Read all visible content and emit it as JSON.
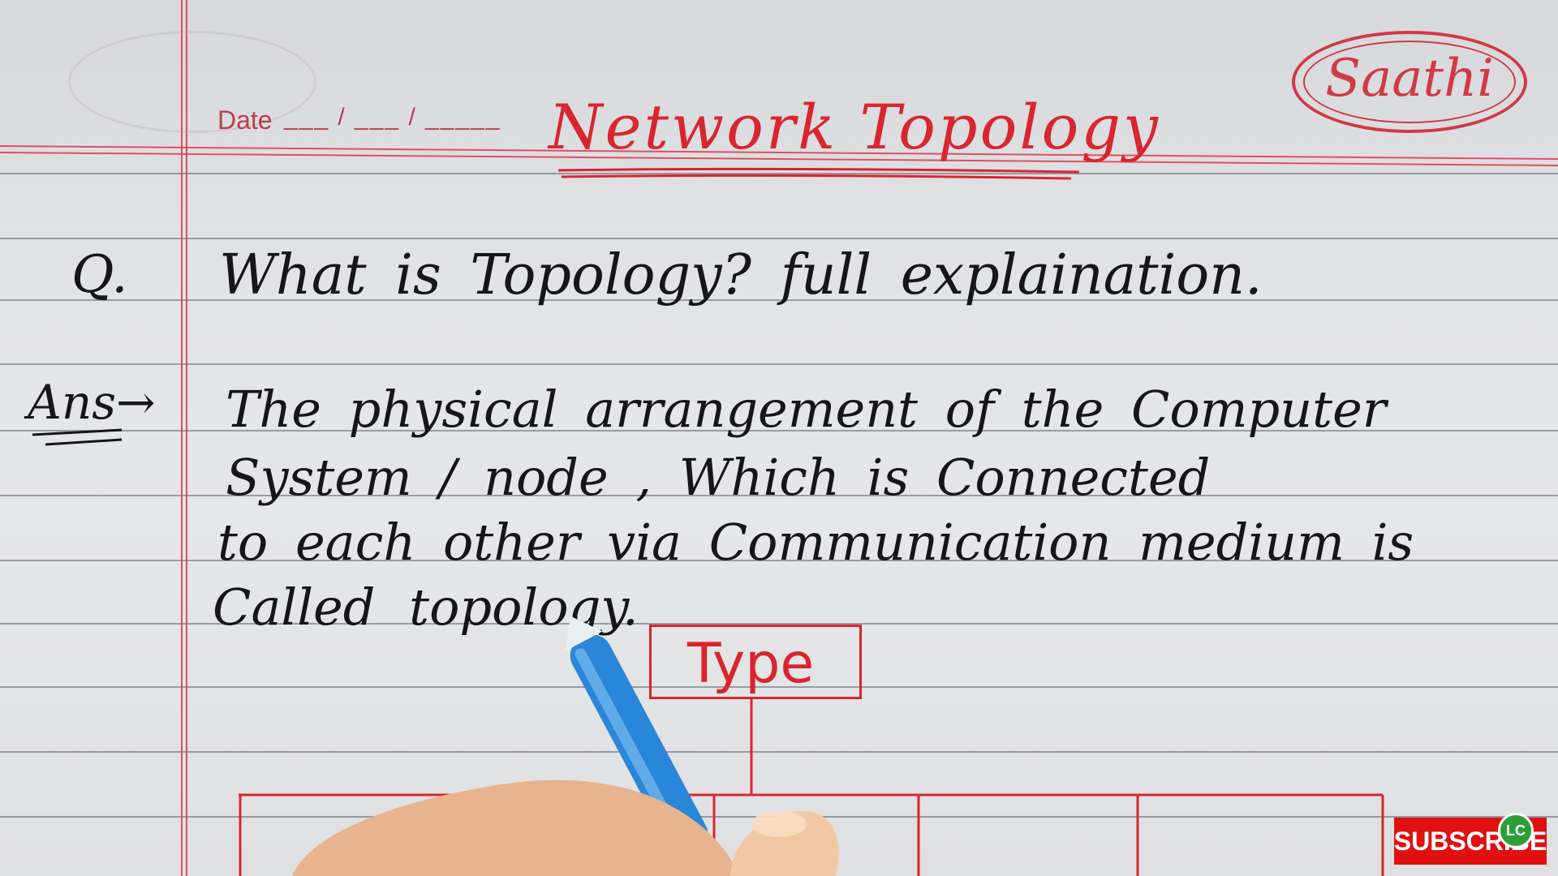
{
  "page": {
    "date_label": "Date",
    "date_slots": "___ / ___ / _____",
    "brand": "Saathi"
  },
  "notes": {
    "title": "Network Topology",
    "question_mark": "Q.",
    "question": "What is Topology? full explaination.",
    "answer_marker": "Ans→",
    "answer_lines": [
      "The physical arrangement of the Computer",
      "System / node , Which is Connected",
      "to each other via Communication medium is",
      "Called topology."
    ],
    "diagram_root": "Type"
  },
  "overlay": {
    "subscribe": "SUBSCRIBE",
    "channel_badge": "LC"
  },
  "colors": {
    "paper": "#e4e5e6",
    "ruled_line": "#5a5f6e",
    "margin_red": "#e05060",
    "ink_black": "#15151a",
    "ink_red": "#d9252f",
    "pen_blue": "#2a86d8",
    "subscribe_red": "#e01010"
  }
}
